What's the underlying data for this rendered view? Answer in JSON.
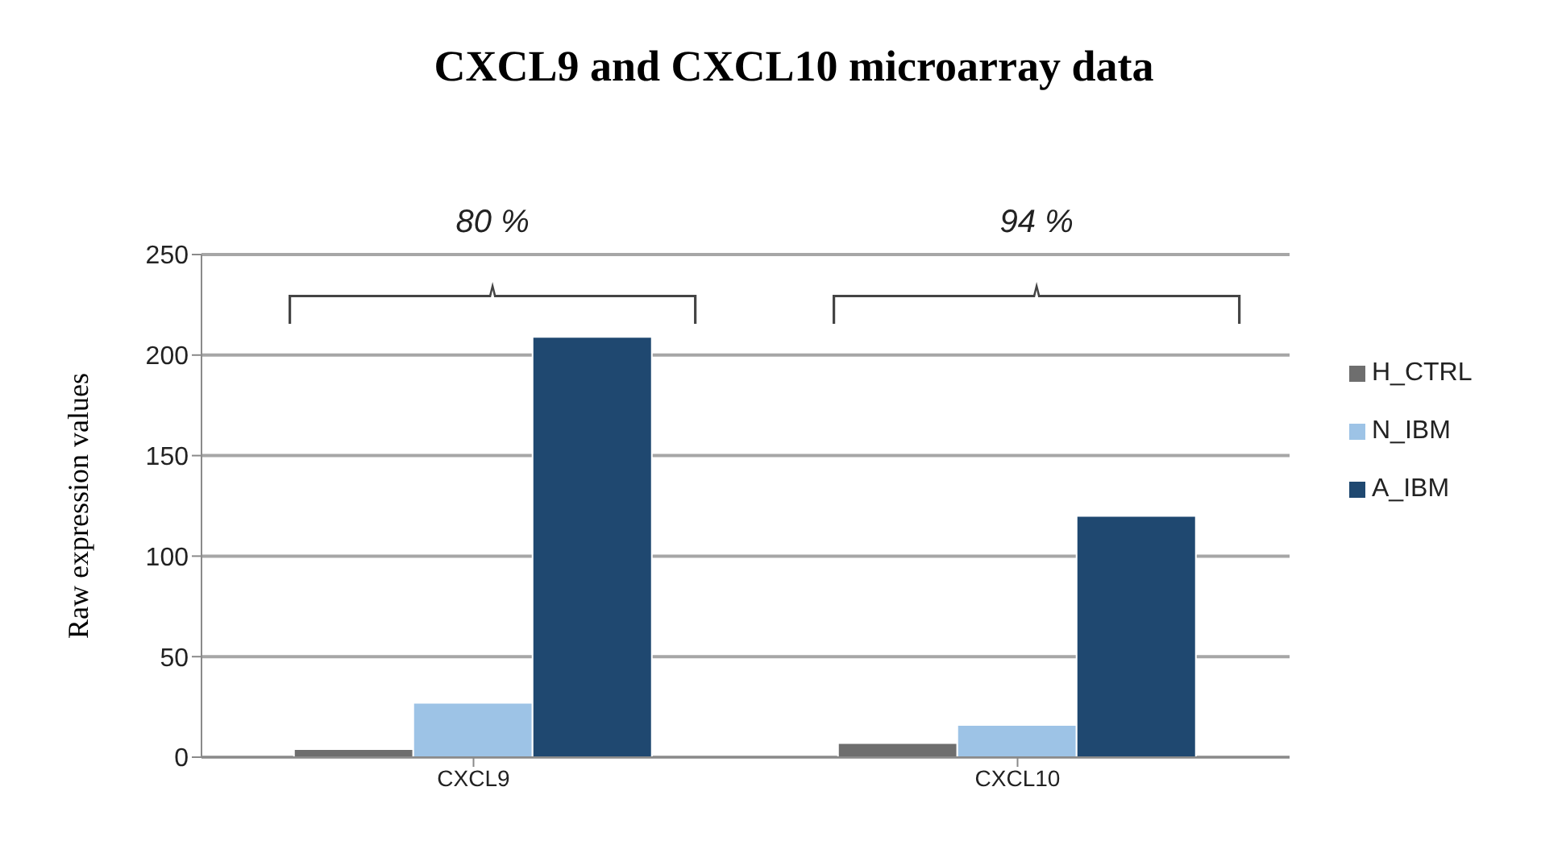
{
  "chart_data": {
    "type": "bar",
    "title": "CXCL9 and CXCL10 microarray data",
    "ylabel": "Raw expression values",
    "categories": [
      "CXCL9",
      "CXCL10"
    ],
    "series": [
      {
        "name": "H_CTRL",
        "color": "#6e6e6e",
        "values": [
          4,
          7
        ]
      },
      {
        "name": "N_IBM",
        "color": "#9dc3e6",
        "values": [
          27,
          16
        ]
      },
      {
        "name": "A_IBM",
        "color": "#1f4870",
        "values": [
          209,
          120
        ]
      }
    ],
    "ylim": [
      0,
      250
    ],
    "yticks": [
      0,
      50,
      100,
      150,
      200,
      250
    ],
    "grid": "y",
    "legend": "right",
    "annotations": [
      "80 %",
      "94 %"
    ]
  }
}
